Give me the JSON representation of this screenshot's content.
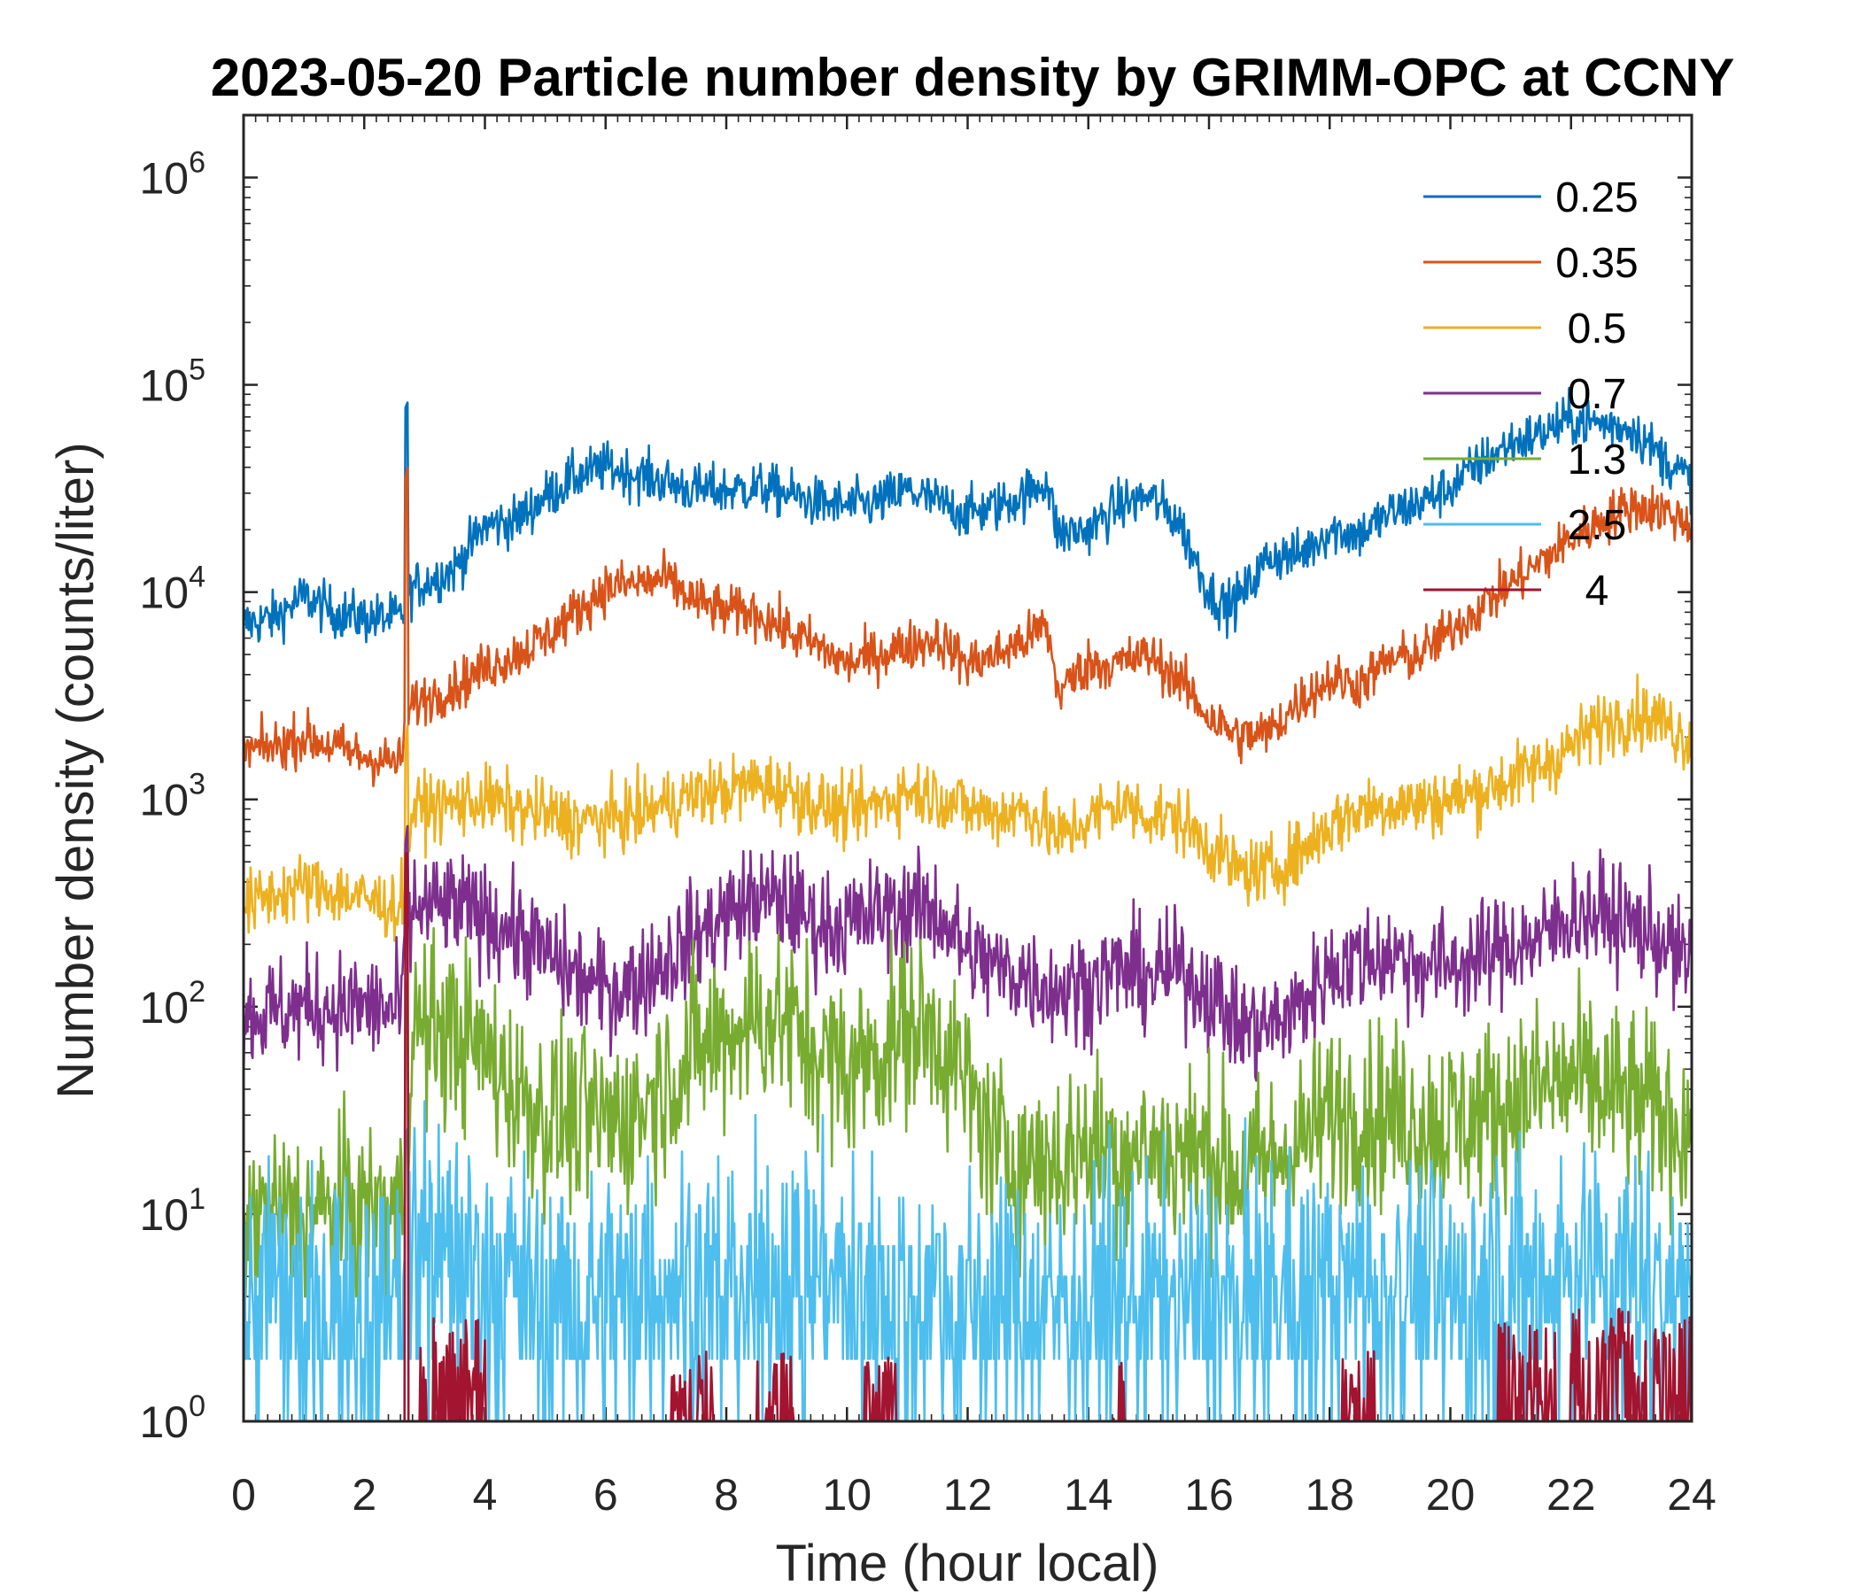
{
  "chart_data": {
    "type": "line",
    "title": "2023-05-20 Particle number density by GRIMM-OPC at CCNY",
    "xlabel": "Time (hour local)",
    "ylabel": "Number density (counts/liter)",
    "xlim": [
      0,
      24
    ],
    "ylim": [
      1,
      2000000
    ],
    "yscale": "log",
    "xticks": [
      0,
      2,
      4,
      6,
      8,
      10,
      12,
      14,
      16,
      18,
      20,
      22,
      24
    ],
    "xtick_labels": [
      "0",
      "2",
      "4",
      "6",
      "8",
      "10",
      "12",
      "14",
      "16",
      "18",
      "20",
      "22",
      "24"
    ],
    "yticks": [
      1,
      10,
      100,
      1000,
      10000,
      100000,
      1000000
    ],
    "ytick_labels": [
      {
        "base": "10",
        "exp": "0"
      },
      {
        "base": "10",
        "exp": "1"
      },
      {
        "base": "10",
        "exp": "2"
      },
      {
        "base": "10",
        "exp": "3"
      },
      {
        "base": "10",
        "exp": "4"
      },
      {
        "base": "10",
        "exp": "5"
      },
      {
        "base": "10",
        "exp": "6"
      }
    ],
    "legend_position": "top-right",
    "spike": {
      "x": 2.7,
      "note": "short spike in all channels around 2.7 h"
    },
    "series": [
      {
        "name": "0.25",
        "color": "#0072BD",
        "noise": 0.06,
        "x": [
          0,
          0.5,
          1,
          1.5,
          2,
          2.6,
          2.8,
          3.5,
          4,
          4.5,
          5,
          5.5,
          6,
          6.5,
          7,
          7.5,
          8,
          8.5,
          9,
          9.5,
          10,
          10.5,
          11,
          11.5,
          12,
          12.5,
          13,
          13.3,
          13.5,
          14,
          14.5,
          15,
          15.5,
          16,
          16.3,
          16.6,
          17,
          17.5,
          18,
          18.5,
          19,
          19.5,
          20,
          20.5,
          21,
          21.5,
          22,
          22.5,
          23,
          23.5,
          24
        ],
        "y": [
          7000,
          7500,
          9500,
          8000,
          7500,
          7500,
          10500,
          13000,
          21000,
          22000,
          29000,
          36000,
          40000,
          37000,
          34000,
          31000,
          31000,
          32000,
          30000,
          27000,
          26000,
          27000,
          31000,
          27000,
          24000,
          26000,
          30000,
          35000,
          19000,
          20000,
          26000,
          29000,
          22000,
          10000,
          8500,
          10000,
          15000,
          15000,
          20000,
          19000,
          24000,
          27000,
          32000,
          42000,
          52000,
          58000,
          68000,
          65000,
          62000,
          45000,
          34000
        ]
      },
      {
        "name": "0.35",
        "color": "#D95319",
        "noise": 0.06,
        "x": [
          0,
          0.5,
          1,
          1.5,
          2,
          2.6,
          2.8,
          3.5,
          4,
          4.5,
          5,
          5.5,
          6,
          6.5,
          7,
          7.5,
          8,
          8.5,
          9,
          9.5,
          10,
          10.5,
          11,
          11.5,
          12,
          12.5,
          13,
          13.3,
          13.5,
          14,
          14.5,
          15,
          15.5,
          16,
          16.5,
          17,
          17.5,
          18,
          18.5,
          19,
          19.5,
          20,
          20.5,
          21,
          21.5,
          22,
          22.5,
          23,
          23.5,
          24
        ],
        "y": [
          1700,
          1800,
          2000,
          1800,
          1600,
          1500,
          2900,
          3500,
          4300,
          5000,
          6000,
          8000,
          10500,
          11000,
          11500,
          9000,
          8000,
          8000,
          6500,
          5500,
          4500,
          5000,
          5500,
          6000,
          4500,
          5000,
          6000,
          7000,
          3300,
          4500,
          4500,
          5000,
          3800,
          2500,
          2000,
          2100,
          3000,
          3800,
          3600,
          4700,
          5000,
          6500,
          8500,
          11000,
          14000,
          18000,
          22000,
          26000,
          25000,
          21000
        ]
      },
      {
        "name": "0.5",
        "color": "#EDB120",
        "noise": 0.08,
        "x": [
          0,
          0.5,
          1,
          1.5,
          2,
          2.6,
          2.8,
          3.5,
          4,
          4.5,
          5,
          5.5,
          6,
          6.5,
          7,
          7.5,
          8,
          8.5,
          9,
          9.5,
          10,
          10.5,
          11,
          11.5,
          12,
          12.5,
          13,
          13.5,
          14,
          14.5,
          15,
          15.5,
          16,
          16.5,
          17,
          17.5,
          18,
          18.5,
          19,
          19.5,
          20,
          20.5,
          21,
          21.5,
          22,
          22.5,
          23,
          23.5,
          24
        ],
        "y": [
          300,
          350,
          380,
          360,
          330,
          300,
          900,
          950,
          1000,
          900,
          850,
          780,
          800,
          850,
          950,
          1050,
          1100,
          1200,
          1100,
          950,
          850,
          950,
          1100,
          1050,
          900,
          850,
          900,
          650,
          800,
          950,
          850,
          800,
          600,
          450,
          450,
          550,
          750,
          900,
          950,
          950,
          1000,
          1100,
          1250,
          1450,
          1800,
          2300,
          2600,
          2400,
          1900
        ]
      },
      {
        "name": "0.7",
        "color": "#7E2F8E",
        "noise": 0.13,
        "x": [
          0,
          0.5,
          1,
          1.5,
          2,
          2.6,
          2.8,
          3.5,
          4,
          4.5,
          5,
          5.5,
          6,
          6.5,
          7,
          7.5,
          8,
          8.5,
          9,
          9.5,
          10,
          10.5,
          11,
          11.5,
          12,
          12.5,
          13,
          13.5,
          14,
          14.5,
          15,
          15.5,
          16,
          16.5,
          17,
          17.5,
          18,
          18.5,
          19,
          19.5,
          20,
          20.5,
          21,
          21.5,
          22,
          22.5,
          23,
          23.5,
          24
        ],
        "y": [
          90,
          95,
          100,
          100,
          100,
          95,
          300,
          300,
          270,
          230,
          180,
          140,
          120,
          130,
          170,
          220,
          280,
          330,
          320,
          250,
          250,
          280,
          300,
          290,
          180,
          150,
          140,
          120,
          130,
          150,
          140,
          150,
          120,
          80,
          80,
          100,
          150,
          170,
          180,
          160,
          160,
          170,
          200,
          210,
          280,
          280,
          250,
          210,
          150
        ]
      },
      {
        "name": "1.3",
        "color": "#77AC30",
        "noise": 0.22,
        "x": [
          0,
          0.5,
          1,
          1.5,
          2,
          2.6,
          2.8,
          3.5,
          4,
          4.5,
          5,
          5.5,
          6,
          6.5,
          7,
          7.5,
          8,
          8.5,
          9,
          9.5,
          10,
          10.5,
          11,
          11.5,
          12,
          12.5,
          13,
          13.5,
          14,
          14.5,
          15,
          15.5,
          16,
          16.5,
          17,
          17.5,
          18,
          18.5,
          19,
          19.5,
          20,
          20.5,
          21,
          21.5,
          22,
          22.5,
          23,
          23.5,
          24
        ],
        "y": [
          9,
          10,
          10,
          10,
          10,
          10,
          80,
          75,
          60,
          40,
          30,
          28,
          28,
          30,
          45,
          60,
          75,
          90,
          85,
          60,
          50,
          60,
          80,
          75,
          40,
          20,
          18,
          18,
          22,
          20,
          20,
          20,
          20,
          15,
          18,
          22,
          30,
          32,
          30,
          28,
          28,
          30,
          35,
          40,
          45,
          40,
          35,
          30,
          25
        ]
      },
      {
        "name": "2.5",
        "color": "#4DBEEE",
        "noise": 0.3,
        "x": [
          0,
          1,
          2,
          2.6,
          2.8,
          3.5,
          4,
          4.5,
          5,
          6,
          7,
          8,
          9,
          10,
          11,
          12,
          13,
          14,
          15,
          16,
          17,
          18,
          19,
          20,
          21,
          22,
          23,
          24
        ],
        "y": [
          4,
          4,
          4,
          4,
          9,
          8,
          6,
          5,
          4,
          4,
          5,
          5,
          6,
          5,
          5,
          4,
          4,
          4,
          4,
          4,
          4,
          5,
          5,
          5,
          5,
          6,
          6,
          5
        ]
      },
      {
        "name": "4",
        "color": "#A2142F",
        "noise": 0,
        "x": [
          0,
          24
        ],
        "y": [
          1,
          1
        ],
        "bursts": [
          {
            "x0": 2.9,
            "x1": 4.0,
            "max": 3.2
          },
          {
            "x0": 7.1,
            "x1": 7.8,
            "max": 2.2
          },
          {
            "x0": 8.5,
            "x1": 9.1,
            "max": 2.2
          },
          {
            "x0": 10.3,
            "x1": 10.8,
            "max": 2.2
          },
          {
            "x0": 14.4,
            "x1": 14.6,
            "max": 2.2
          },
          {
            "x0": 18.2,
            "x1": 18.8,
            "max": 2.2
          },
          {
            "x0": 20.8,
            "x1": 21.8,
            "max": 3.0
          },
          {
            "x0": 22.0,
            "x1": 24.0,
            "max": 3.5
          }
        ]
      }
    ]
  }
}
